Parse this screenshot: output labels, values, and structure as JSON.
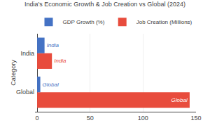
{
  "chart_data": {
    "type": "bar",
    "orientation": "horizontal",
    "title": "India's Economic Growth & Job Creation vs Global (2024)",
    "ylabel": "Category",
    "categories": [
      "Global",
      "India"
    ],
    "series": [
      {
        "name": "GDP Growth (%)",
        "color": "#4472C4",
        "values": [
          3.0,
          7.0
        ],
        "labels": [
          "Global",
          "India"
        ]
      },
      {
        "name": "Job Creation (Millions)",
        "color": "#E84C3D",
        "values": [
          144.0,
          14.0
        ],
        "labels": [
          "Global",
          "India"
        ]
      }
    ],
    "xlim": [
      -2,
      150
    ],
    "xticks": [
      0,
      50,
      100,
      150
    ],
    "grid": true,
    "legend": "top"
  }
}
